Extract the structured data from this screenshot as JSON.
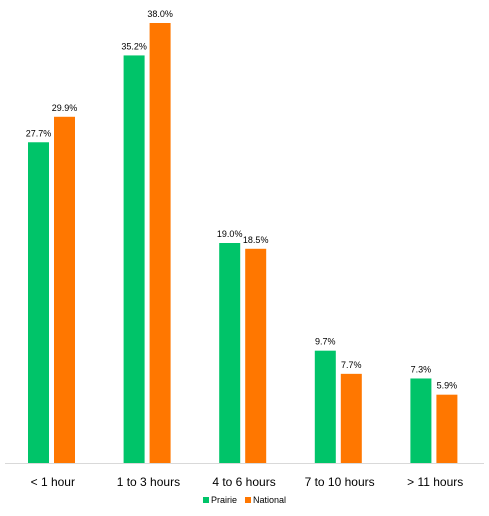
{
  "chart_data": {
    "type": "bar",
    "title": "",
    "xlabel": "",
    "ylabel": "",
    "ylim": [
      0,
      38.0
    ],
    "grid": false,
    "legend_position": "bottom",
    "categories": [
      "< 1 hour",
      "1 to 3 hours",
      "4 to 6 hours",
      "7 to 10 hours",
      "> 11 hours"
    ],
    "series": [
      {
        "name": "Prairie",
        "color": "#00c469",
        "values": [
          27.7,
          35.2,
          19.0,
          9.7,
          7.3
        ],
        "labels": [
          "27.7%",
          "35.2%",
          "19.0%",
          "9.7%",
          "7.3%"
        ]
      },
      {
        "name": "National",
        "color": "#ff7700",
        "values": [
          29.9,
          38.0,
          18.5,
          7.7,
          5.9
        ],
        "labels": [
          "29.9%",
          "38.0%",
          "18.5%",
          "7.7%",
          "5.9%"
        ]
      }
    ]
  }
}
